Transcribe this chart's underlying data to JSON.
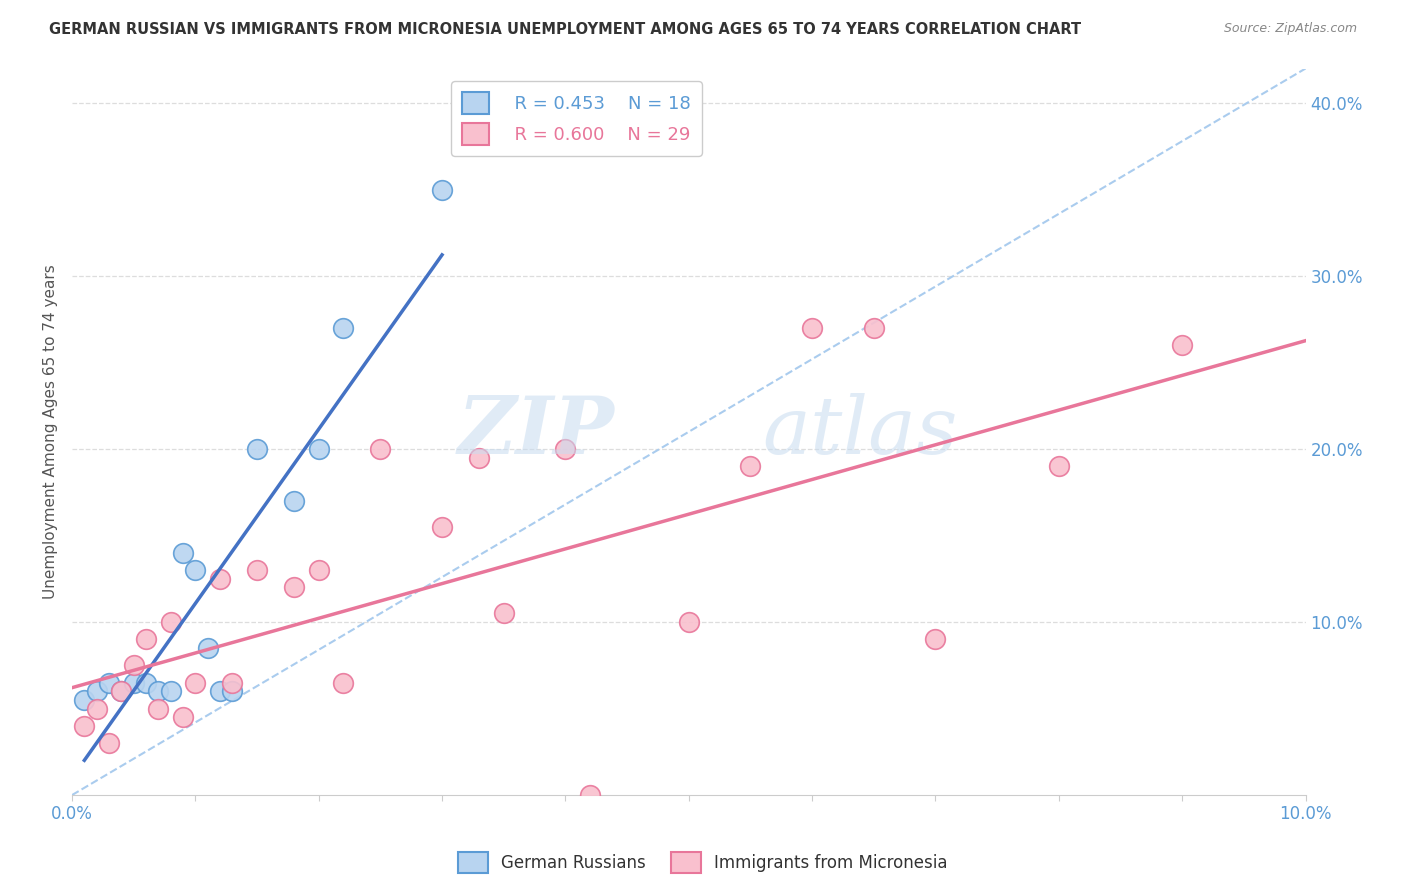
{
  "title": "GERMAN RUSSIAN VS IMMIGRANTS FROM MICRONESIA UNEMPLOYMENT AMONG AGES 65 TO 74 YEARS CORRELATION CHART",
  "source": "Source: ZipAtlas.com",
  "ylabel": "Unemployment Among Ages 65 to 74 years",
  "right_ytick_vals": [
    0.0,
    0.1,
    0.2,
    0.3,
    0.4
  ],
  "right_ytick_labels": [
    "",
    "10.0%",
    "20.0%",
    "30.0%",
    "40.0%"
  ],
  "xlim": [
    0.0,
    0.1
  ],
  "ylim": [
    0.0,
    0.42
  ],
  "legend_blue_r": "R = 0.453",
  "legend_blue_n": "N = 18",
  "legend_pink_r": "R = 0.600",
  "legend_pink_n": "N = 29",
  "blue_fill": "#B8D4F0",
  "blue_edge": "#5B9BD5",
  "pink_fill": "#F9C0CE",
  "pink_edge": "#E8769A",
  "blue_line": "#4472C4",
  "pink_line": "#E8769A",
  "dash_color": "#AACCEE",
  "grid_color": "#DDDDDD",
  "background_color": "#FFFFFF",
  "blue_scatter_x": [
    0.001,
    0.002,
    0.003,
    0.004,
    0.005,
    0.006,
    0.007,
    0.008,
    0.009,
    0.01,
    0.011,
    0.012,
    0.013,
    0.015,
    0.018,
    0.02,
    0.022,
    0.03
  ],
  "blue_scatter_y": [
    0.055,
    0.06,
    0.065,
    0.06,
    0.065,
    0.065,
    0.06,
    0.06,
    0.14,
    0.13,
    0.085,
    0.06,
    0.06,
    0.2,
    0.17,
    0.2,
    0.27,
    0.35
  ],
  "pink_scatter_x": [
    0.001,
    0.002,
    0.003,
    0.004,
    0.005,
    0.006,
    0.007,
    0.008,
    0.009,
    0.01,
    0.012,
    0.013,
    0.015,
    0.018,
    0.02,
    0.022,
    0.025,
    0.03,
    0.033,
    0.035,
    0.04,
    0.042,
    0.05,
    0.055,
    0.06,
    0.065,
    0.07,
    0.08,
    0.09
  ],
  "pink_scatter_y": [
    0.04,
    0.05,
    0.03,
    0.06,
    0.075,
    0.09,
    0.05,
    0.1,
    0.045,
    0.065,
    0.125,
    0.065,
    0.13,
    0.12,
    0.13,
    0.065,
    0.2,
    0.155,
    0.195,
    0.105,
    0.2,
    0.0,
    0.1,
    0.19,
    0.27,
    0.27,
    0.09,
    0.19,
    0.26
  ]
}
